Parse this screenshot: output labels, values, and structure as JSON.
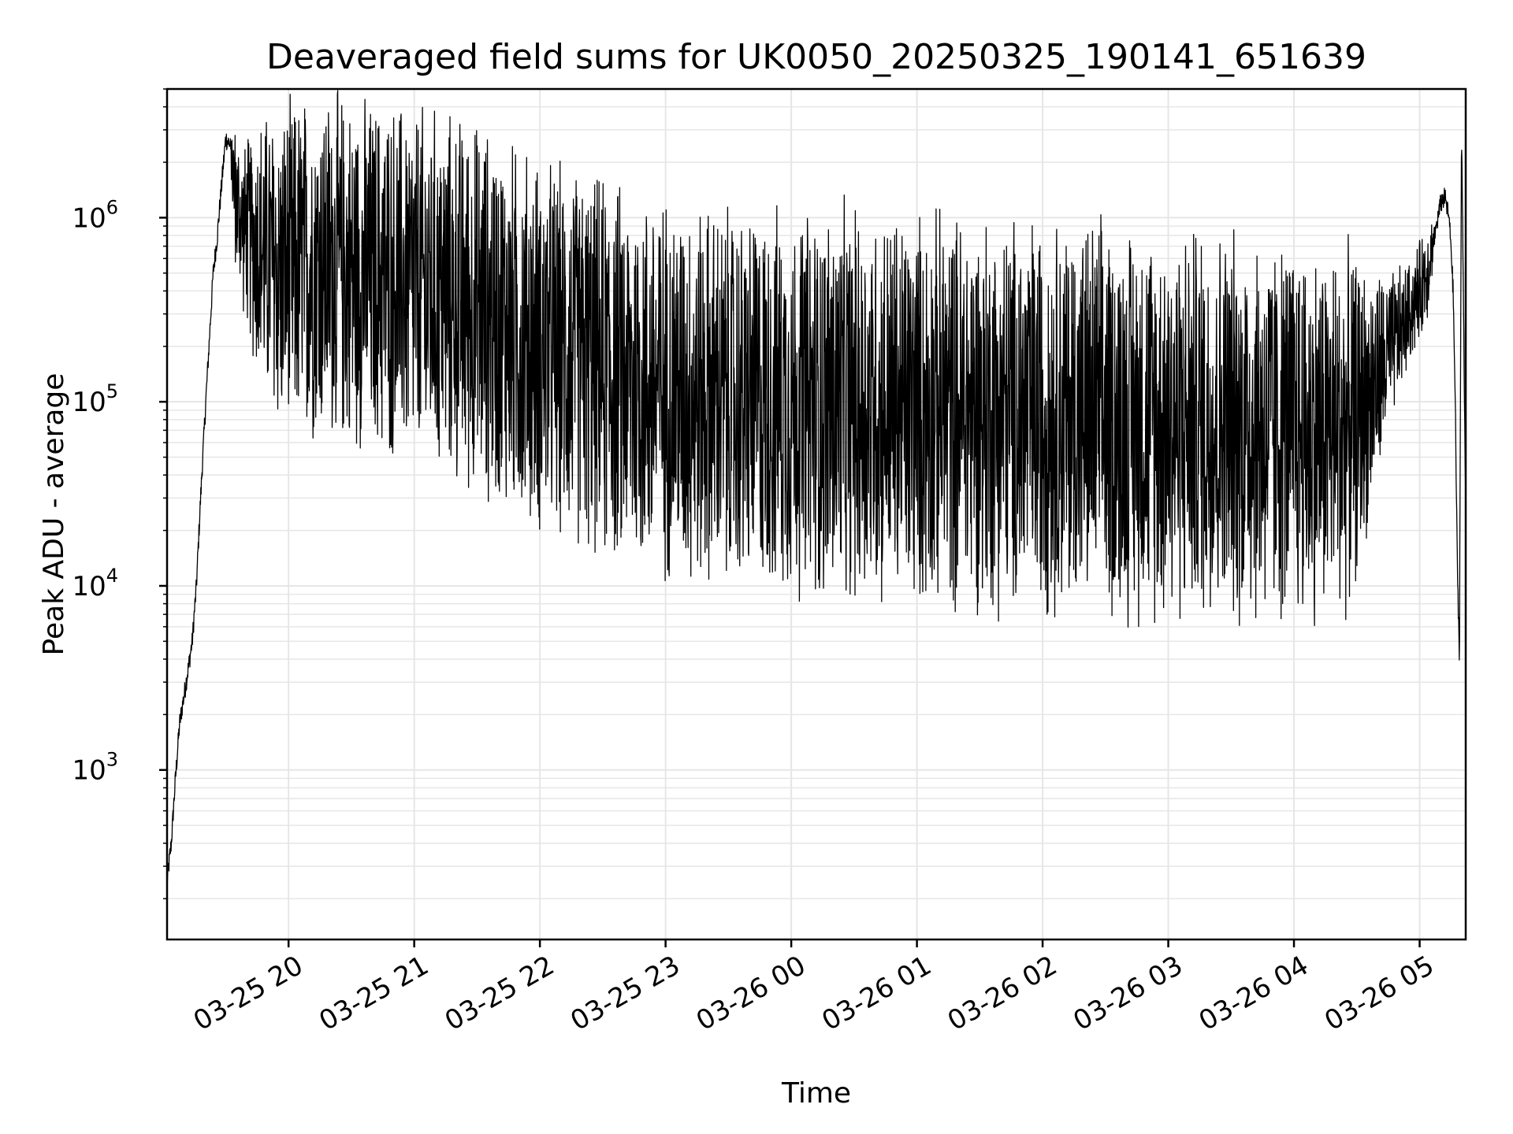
{
  "chart_data": {
    "type": "line",
    "title": "Deaveraged field sums for UK0050_20250325_190141_651639",
    "xlabel": "Time",
    "ylabel": "Peak ADU - average",
    "yscale": "log",
    "x_range": [
      "2025-03-25T19:02",
      "2025-03-26T05:22"
    ],
    "ylim": [
      120,
      5000000
    ],
    "x_ticks": [
      "03-25 20",
      "03-25 21",
      "03-25 22",
      "03-25 23",
      "03-26 00",
      "03-26 01",
      "03-26 02",
      "03-26 03",
      "03-26 04",
      "03-26 05"
    ],
    "y_ticks": [
      {
        "base": "10",
        "exp": "3",
        "value": 1000
      },
      {
        "base": "10",
        "exp": "4",
        "value": 10000
      },
      {
        "base": "10",
        "exp": "5",
        "value": 100000
      },
      {
        "base": "10",
        "exp": "6",
        "value": 1000000
      }
    ],
    "grid": true,
    "line_color": "#000000",
    "series": [
      {
        "x": [
          "2025-03-25T19:02",
          "2025-03-25T19:04",
          "2025-03-25T19:06",
          "2025-03-25T19:08",
          "2025-03-25T19:10",
          "2025-03-25T19:12",
          "2025-03-25T19:14",
          "2025-03-25T19:16",
          "2025-03-25T19:18",
          "2025-03-25T19:20",
          "2025-03-25T19:22",
          "2025-03-25T19:24",
          "2025-03-25T19:26",
          "2025-03-25T19:28",
          "2025-03-25T19:30",
          "2025-03-25T19:32",
          "2025-03-25T19:35",
          "2025-03-25T19:38",
          "2025-03-25T19:41",
          "2025-03-25T19:45",
          "2025-03-25T19:50",
          "2025-03-25T19:55",
          "2025-03-25T20:00",
          "2025-03-25T20:10",
          "2025-03-25T20:20",
          "2025-03-25T20:30",
          "2025-03-25T20:40",
          "2025-03-25T20:50",
          "2025-03-25T21:00",
          "2025-03-25T21:15",
          "2025-03-25T21:30",
          "2025-03-25T21:45",
          "2025-03-25T22:00",
          "2025-03-25T22:15",
          "2025-03-25T22:30",
          "2025-03-25T22:45",
          "2025-03-25T23:00",
          "2025-03-25T23:15",
          "2025-03-25T23:30",
          "2025-03-25T23:45",
          "2025-03-26T00:00",
          "2025-03-26T00:15",
          "2025-03-26T00:30",
          "2025-03-26T00:45",
          "2025-03-26T01:00",
          "2025-03-26T01:15",
          "2025-03-26T01:30",
          "2025-03-26T01:45",
          "2025-03-26T02:00",
          "2025-03-26T02:15",
          "2025-03-26T02:30",
          "2025-03-26T02:45",
          "2025-03-26T03:00",
          "2025-03-26T03:15",
          "2025-03-26T03:30",
          "2025-03-26T03:45",
          "2025-03-26T04:00",
          "2025-03-26T04:15",
          "2025-03-26T04:25",
          "2025-03-26T04:35",
          "2025-03-26T04:45",
          "2025-03-26T04:55",
          "2025-03-26T05:00",
          "2025-03-26T05:04",
          "2025-03-26T05:08",
          "2025-03-26T05:10",
          "2025-03-26T05:12",
          "2025-03-26T05:14",
          "2025-03-26T05:15",
          "2025-03-26T05:16",
          "2025-03-26T05:17",
          "2025-03-26T05:18",
          "2025-03-26T05:19",
          "2025-03-26T05:20",
          "2025-03-26T05:21",
          "2025-03-26T05:22"
        ],
        "y": [
          250,
          400,
          900,
          1800,
          2500,
          3500,
          5000,
          10000,
          30000,
          80000,
          200000,
          500000,
          800000,
          1500000,
          2700000,
          2500000,
          1200000,
          900000,
          800000,
          700000,
          600000,
          500000,
          500000,
          550000,
          550000,
          500000,
          480000,
          450000,
          420000,
          380000,
          320000,
          250000,
          200000,
          180000,
          150000,
          130000,
          120000,
          110000,
          100000,
          100000,
          100000,
          95000,
          95000,
          95000,
          90000,
          90000,
          90000,
          85000,
          85000,
          85000,
          80000,
          80000,
          78000,
          75000,
          75000,
          72000,
          70000,
          68000,
          70000,
          100000,
          180000,
          300000,
          400000,
          550000,
          900000,
          1200000,
          1300000,
          1000000,
          700000,
          400000,
          100000,
          13000,
          4000,
          3000000,
          300000,
          25000
        ],
        "spread": [
          1,
          1,
          1,
          1,
          1,
          1,
          1,
          1,
          1,
          1,
          1,
          1,
          1,
          1,
          1,
          1,
          3,
          3,
          4,
          6,
          8,
          9,
          10,
          11,
          11,
          11,
          11,
          12,
          12,
          12,
          13,
          13,
          13,
          13,
          14,
          14,
          14,
          14,
          14,
          14,
          14,
          15,
          15,
          15,
          15,
          15,
          15,
          15,
          15,
          15,
          15,
          15,
          15,
          15,
          15,
          15,
          14,
          13,
          12,
          6,
          3,
          2,
          2,
          2,
          1,
          1,
          1,
          1,
          1,
          1,
          1,
          1,
          1,
          1,
          1,
          1
        ]
      }
    ]
  }
}
